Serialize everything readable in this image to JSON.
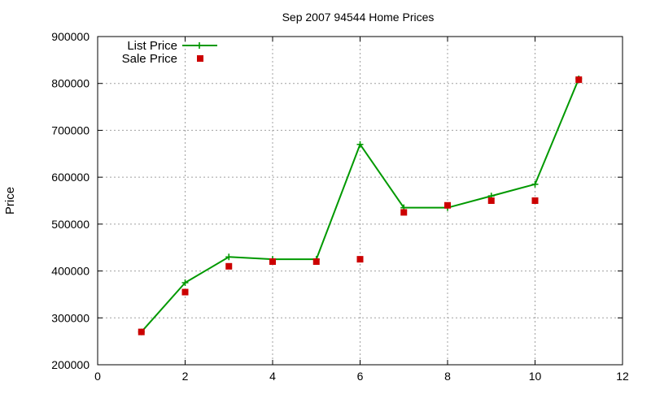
{
  "chart_data": {
    "type": "line",
    "title": "Sep 2007 94544 Home Prices",
    "xlabel": "",
    "ylabel": "Price",
    "xlim": [
      0,
      12
    ],
    "ylim": [
      200000,
      900000
    ],
    "xticks": [
      "0",
      "2",
      "4",
      "6",
      "8",
      "10",
      "12"
    ],
    "yticks": [
      "200000",
      "300000",
      "400000",
      "500000",
      "600000",
      "700000",
      "800000",
      "900000"
    ],
    "grid": true,
    "legend_position": "top-left",
    "series": [
      {
        "name": "List Price",
        "style": "line with plus markers",
        "color": "#009900",
        "x": [
          1,
          2,
          3,
          4,
          5,
          6,
          7,
          8,
          9,
          10,
          11
        ],
        "y": [
          270000,
          375000,
          430000,
          425000,
          425000,
          670000,
          535000,
          535000,
          560000,
          585000,
          810000
        ]
      },
      {
        "name": "Sale Price",
        "style": "square markers",
        "color": "#cc0000",
        "x": [
          1,
          2,
          3,
          4,
          5,
          6,
          7,
          8,
          9,
          10,
          11
        ],
        "y": [
          270000,
          355000,
          410000,
          420000,
          420000,
          425000,
          525000,
          540000,
          550000,
          550000,
          808000
        ]
      }
    ]
  }
}
